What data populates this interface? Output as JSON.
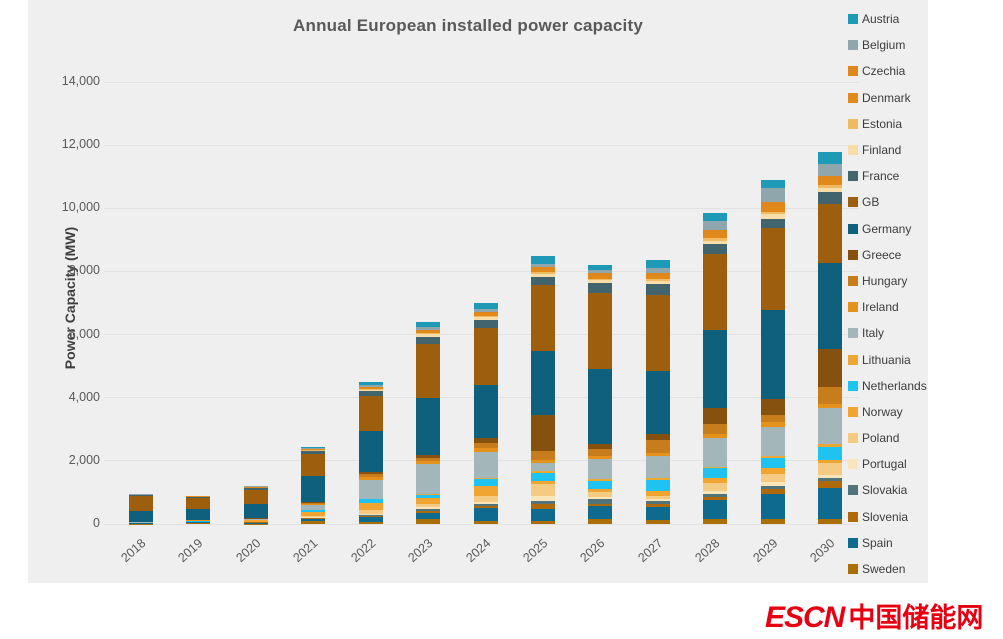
{
  "title": "Annual European installed power capacity",
  "y_axis": {
    "label": "Power Capacity (MW)",
    "ticks": [
      {
        "value": 0,
        "label": "0"
      },
      {
        "value": 2000,
        "label": "2,000"
      },
      {
        "value": 4000,
        "label": "4,000"
      },
      {
        "value": 6000,
        "label": "6,000"
      },
      {
        "value": 8000,
        "label": "8,000"
      },
      {
        "value": 10000,
        "label": "10,000"
      },
      {
        "value": 12000,
        "label": "12,000"
      },
      {
        "value": 14000,
        "label": "14,000"
      }
    ]
  },
  "watermark": {
    "latin": "ESCN",
    "chinese": "中国储能网",
    "color": "#e60012"
  },
  "colors": {
    "canvas_background": "#efefef",
    "gridline": "#e2e2e2",
    "title_text": "#595959",
    "axis_text": "#595959"
  },
  "chart_data": {
    "type": "bar",
    "stacked": true,
    "stack_order": "reverse-alphabetical-from-bottom",
    "grid": true,
    "legend_position": "right",
    "xlabel": "",
    "ylabel": "Power Capacity (MW)",
    "ylim": [
      0,
      14000
    ],
    "categories": [
      "2018",
      "2019",
      "2020",
      "2021",
      "2022",
      "2023",
      "2024",
      "2025",
      "2026",
      "2027",
      "2028",
      "2029",
      "2030"
    ],
    "series": [
      {
        "name": "Austria",
        "color": "#1e9ab6",
        "values": [
          5,
          5,
          10,
          30,
          100,
          150,
          200,
          250,
          150,
          250,
          250,
          250,
          380
        ]
      },
      {
        "name": "Belgium",
        "color": "#8fa6ac",
        "values": [
          10,
          10,
          15,
          30,
          50,
          80,
          80,
          100,
          100,
          150,
          300,
          450,
          380
        ]
      },
      {
        "name": "Czechia",
        "color": "#df861c",
        "values": [
          5,
          5,
          5,
          10,
          20,
          30,
          40,
          80,
          80,
          100,
          120,
          150,
          150
        ]
      },
      {
        "name": "Denmark",
        "color": "#e18a19",
        "values": [
          20,
          20,
          30,
          40,
          50,
          80,
          100,
          100,
          100,
          100,
          120,
          150,
          150
        ]
      },
      {
        "name": "Estonia",
        "color": "#f0ba62",
        "values": [
          0,
          0,
          5,
          10,
          20,
          30,
          30,
          50,
          50,
          50,
          80,
          80,
          80
        ]
      },
      {
        "name": "Finland",
        "color": "#f8dda8",
        "values": [
          5,
          5,
          10,
          20,
          50,
          80,
          80,
          100,
          100,
          100,
          120,
          150,
          150
        ]
      },
      {
        "name": "France",
        "color": "#41646d",
        "values": [
          30,
          30,
          50,
          100,
          150,
          250,
          250,
          250,
          300,
          350,
          300,
          300,
          380
        ]
      },
      {
        "name": "GB",
        "color": "#9d5e0e",
        "values": [
          450,
          350,
          450,
          700,
          1100,
          1700,
          1800,
          2100,
          2400,
          2400,
          2400,
          2600,
          1850
        ]
      },
      {
        "name": "Germany",
        "color": "#0f607c",
        "values": [
          350,
          350,
          450,
          800,
          1300,
          1800,
          1700,
          2000,
          2400,
          2000,
          2500,
          2800,
          2750
        ]
      },
      {
        "name": "Greece",
        "color": "#86500f",
        "values": [
          5,
          5,
          10,
          30,
          80,
          100,
          150,
          1150,
          150,
          200,
          500,
          500,
          1200
        ]
      },
      {
        "name": "Hungary",
        "color": "#c87d1d",
        "values": [
          5,
          5,
          10,
          30,
          80,
          80,
          150,
          300,
          200,
          400,
          300,
          250,
          540
        ]
      },
      {
        "name": "Ireland",
        "color": "#e5921c",
        "values": [
          10,
          10,
          20,
          50,
          100,
          100,
          150,
          100,
          100,
          100,
          150,
          150,
          100
        ]
      },
      {
        "name": "Italy",
        "color": "#a3b6ba",
        "values": [
          10,
          20,
          30,
          150,
          600,
          950,
          800,
          250,
          650,
          700,
          900,
          900,
          1170
        ]
      },
      {
        "name": "Lithuania",
        "color": "#eca832",
        "values": [
          0,
          0,
          5,
          10,
          20,
          30,
          30,
          50,
          50,
          50,
          50,
          80,
          80
        ]
      },
      {
        "name": "Netherlands",
        "color": "#1ec3f2",
        "values": [
          5,
          10,
          20,
          50,
          100,
          100,
          250,
          250,
          250,
          350,
          300,
          300,
          410
        ]
      },
      {
        "name": "Norway",
        "color": "#f0a431",
        "values": [
          5,
          5,
          10,
          150,
          250,
          200,
          300,
          100,
          100,
          150,
          150,
          200,
          100
        ]
      },
      {
        "name": "Poland",
        "color": "#f5cb84",
        "values": [
          5,
          5,
          10,
          30,
          100,
          100,
          200,
          380,
          150,
          100,
          250,
          250,
          380
        ]
      },
      {
        "name": "Portugal",
        "color": "#fae5bb",
        "values": [
          0,
          5,
          5,
          10,
          30,
          50,
          50,
          150,
          80,
          80,
          100,
          120,
          100
        ]
      },
      {
        "name": "Slovakia",
        "color": "#51737a",
        "values": [
          5,
          5,
          10,
          20,
          50,
          80,
          80,
          100,
          150,
          100,
          100,
          120,
          100
        ]
      },
      {
        "name": "Slovenia",
        "color": "#b0690a",
        "values": [
          5,
          5,
          10,
          20,
          30,
          50,
          50,
          150,
          80,
          80,
          100,
          150,
          200
        ]
      },
      {
        "name": "Spain",
        "color": "#0e6a8e",
        "values": [
          10,
          20,
          30,
          80,
          150,
          200,
          400,
          400,
          400,
          400,
          600,
          800,
          1000
        ]
      },
      {
        "name": "Sweden",
        "color": "#a96e07",
        "values": [
          10,
          30,
          15,
          80,
          70,
          150,
          110,
          90,
          160,
          140,
          160,
          150,
          150
        ]
      }
    ]
  }
}
